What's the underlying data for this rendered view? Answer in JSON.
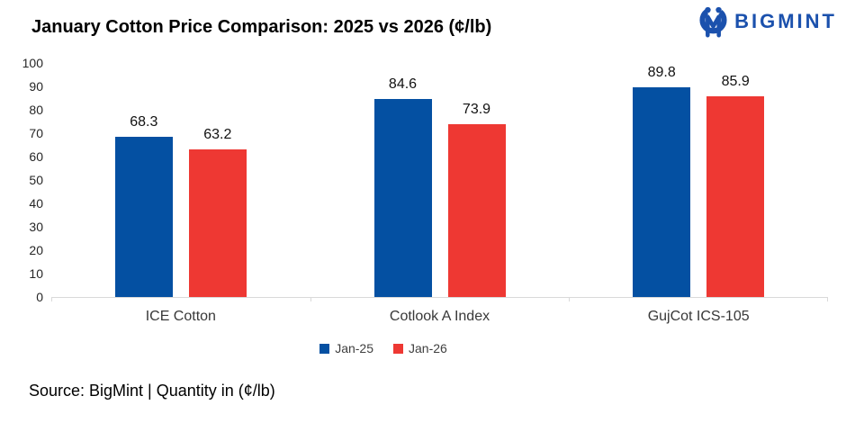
{
  "header": {
    "logo": {
      "text": "BIGMINT",
      "color": "#1B51AD",
      "icon": "bigmint-m-ring-icon"
    }
  },
  "chart_data": {
    "type": "bar",
    "title": "January Cotton Price Comparison: 2025 vs 2026 (¢/lb)",
    "categories": [
      "ICE Cotton",
      "Cotlook A Index",
      "GujCot ICS-105"
    ],
    "series": [
      {
        "name": "Jan-25",
        "color": "#0450A2",
        "values": [
          68.3,
          84.6,
          89.8
        ]
      },
      {
        "name": "Jan-26",
        "color": "#EE3833",
        "values": [
          63.2,
          73.9,
          85.9
        ]
      }
    ],
    "xlabel": "",
    "ylabel": "",
    "ylim": [
      0,
      100
    ],
    "ytick_step": 10,
    "grid": false,
    "legend_position": "bottom",
    "value_labels": true,
    "axis_line_color": "#D9D9D9"
  },
  "footer": {
    "source_text": "Source: BigMint | Quantity in (¢/lb)"
  }
}
